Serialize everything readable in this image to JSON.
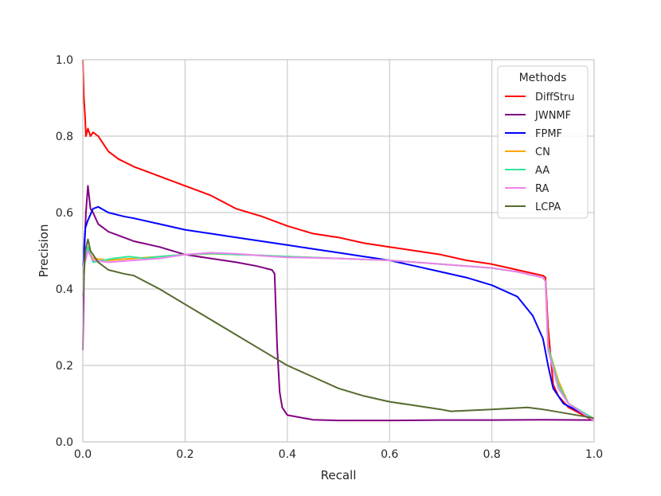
{
  "chart_data": {
    "type": "line",
    "title": "",
    "xlabel": "Recall",
    "ylabel": "Precision",
    "xlim": [
      0.0,
      1.0
    ],
    "ylim": [
      0.0,
      1.0
    ],
    "xticks": [
      "0.0",
      "0.2",
      "0.4",
      "0.6",
      "0.8",
      "1.0"
    ],
    "yticks": [
      "0.0",
      "0.2",
      "0.4",
      "0.6",
      "0.8",
      "1.0"
    ],
    "grid": true,
    "legend": {
      "title": "Methods",
      "placement": "top-right"
    },
    "series": [
      {
        "name": "DiffStru",
        "color": "#ff0000",
        "points": [
          [
            0.0,
            1.0
          ],
          [
            0.002,
            0.9
          ],
          [
            0.004,
            0.86
          ],
          [
            0.006,
            0.8
          ],
          [
            0.01,
            0.82
          ],
          [
            0.015,
            0.8
          ],
          [
            0.02,
            0.81
          ],
          [
            0.03,
            0.8
          ],
          [
            0.04,
            0.78
          ],
          [
            0.05,
            0.76
          ],
          [
            0.07,
            0.74
          ],
          [
            0.1,
            0.72
          ],
          [
            0.13,
            0.705
          ],
          [
            0.16,
            0.69
          ],
          [
            0.2,
            0.67
          ],
          [
            0.25,
            0.645
          ],
          [
            0.3,
            0.61
          ],
          [
            0.35,
            0.59
          ],
          [
            0.4,
            0.565
          ],
          [
            0.45,
            0.545
          ],
          [
            0.5,
            0.535
          ],
          [
            0.55,
            0.52
          ],
          [
            0.6,
            0.51
          ],
          [
            0.65,
            0.5
          ],
          [
            0.7,
            0.49
          ],
          [
            0.75,
            0.475
          ],
          [
            0.8,
            0.465
          ],
          [
            0.85,
            0.45
          ],
          [
            0.9,
            0.435
          ],
          [
            0.905,
            0.43
          ],
          [
            0.91,
            0.3
          ],
          [
            0.92,
            0.15
          ],
          [
            0.93,
            0.12
          ],
          [
            0.95,
            0.09
          ],
          [
            1.0,
            0.055
          ]
        ]
      },
      {
        "name": "JWNMF",
        "color": "#800080",
        "points": [
          [
            0.0,
            0.24
          ],
          [
            0.003,
            0.5
          ],
          [
            0.006,
            0.6
          ],
          [
            0.01,
            0.67
          ],
          [
            0.015,
            0.61
          ],
          [
            0.02,
            0.6
          ],
          [
            0.03,
            0.57
          ],
          [
            0.05,
            0.55
          ],
          [
            0.08,
            0.535
          ],
          [
            0.1,
            0.525
          ],
          [
            0.15,
            0.51
          ],
          [
            0.2,
            0.49
          ],
          [
            0.25,
            0.48
          ],
          [
            0.3,
            0.47
          ],
          [
            0.34,
            0.46
          ],
          [
            0.37,
            0.45
          ],
          [
            0.375,
            0.44
          ],
          [
            0.38,
            0.25
          ],
          [
            0.385,
            0.13
          ],
          [
            0.39,
            0.09
          ],
          [
            0.4,
            0.07
          ],
          [
            0.45,
            0.058
          ],
          [
            0.5,
            0.056
          ],
          [
            0.6,
            0.056
          ],
          [
            0.7,
            0.057
          ],
          [
            0.8,
            0.057
          ],
          [
            0.9,
            0.058
          ],
          [
            1.0,
            0.057
          ]
        ]
      },
      {
        "name": "FPMF",
        "color": "#0000ff",
        "points": [
          [
            0.0,
            0.46
          ],
          [
            0.005,
            0.56
          ],
          [
            0.01,
            0.58
          ],
          [
            0.02,
            0.61
          ],
          [
            0.03,
            0.615
          ],
          [
            0.05,
            0.6
          ],
          [
            0.08,
            0.59
          ],
          [
            0.1,
            0.585
          ],
          [
            0.15,
            0.57
          ],
          [
            0.2,
            0.555
          ],
          [
            0.25,
            0.545
          ],
          [
            0.3,
            0.535
          ],
          [
            0.35,
            0.525
          ],
          [
            0.4,
            0.515
          ],
          [
            0.45,
            0.505
          ],
          [
            0.5,
            0.495
          ],
          [
            0.55,
            0.485
          ],
          [
            0.6,
            0.475
          ],
          [
            0.65,
            0.46
          ],
          [
            0.7,
            0.445
          ],
          [
            0.75,
            0.43
          ],
          [
            0.8,
            0.41
          ],
          [
            0.85,
            0.38
          ],
          [
            0.88,
            0.33
          ],
          [
            0.9,
            0.27
          ],
          [
            0.91,
            0.2
          ],
          [
            0.92,
            0.14
          ],
          [
            0.94,
            0.1
          ],
          [
            1.0,
            0.06
          ]
        ]
      },
      {
        "name": "CN",
        "color": "#ffa500",
        "points": [
          [
            0.0,
            0.45
          ],
          [
            0.01,
            0.5
          ],
          [
            0.02,
            0.48
          ],
          [
            0.05,
            0.475
          ],
          [
            0.1,
            0.48
          ],
          [
            0.15,
            0.485
          ],
          [
            0.2,
            0.49
          ],
          [
            0.25,
            0.492
          ],
          [
            0.3,
            0.49
          ],
          [
            0.35,
            0.488
          ],
          [
            0.4,
            0.485
          ],
          [
            0.5,
            0.48
          ],
          [
            0.6,
            0.475
          ],
          [
            0.7,
            0.465
          ],
          [
            0.8,
            0.455
          ],
          [
            0.85,
            0.445
          ],
          [
            0.9,
            0.43
          ],
          [
            0.905,
            0.42
          ],
          [
            0.91,
            0.25
          ],
          [
            0.93,
            0.16
          ],
          [
            0.95,
            0.1
          ],
          [
            1.0,
            0.06
          ]
        ]
      },
      {
        "name": "AA",
        "color": "#2fe89a",
        "points": [
          [
            0.0,
            0.45
          ],
          [
            0.01,
            0.51
          ],
          [
            0.02,
            0.47
          ],
          [
            0.04,
            0.475
          ],
          [
            0.06,
            0.48
          ],
          [
            0.09,
            0.485
          ],
          [
            0.12,
            0.48
          ],
          [
            0.15,
            0.485
          ],
          [
            0.2,
            0.49
          ],
          [
            0.25,
            0.493
          ],
          [
            0.3,
            0.49
          ],
          [
            0.35,
            0.488
          ],
          [
            0.4,
            0.485
          ],
          [
            0.5,
            0.48
          ],
          [
            0.6,
            0.475
          ],
          [
            0.7,
            0.465
          ],
          [
            0.8,
            0.455
          ],
          [
            0.85,
            0.445
          ],
          [
            0.9,
            0.43
          ],
          [
            0.905,
            0.42
          ],
          [
            0.91,
            0.25
          ],
          [
            0.93,
            0.15
          ],
          [
            0.95,
            0.1
          ],
          [
            1.0,
            0.06
          ]
        ]
      },
      {
        "name": "RA",
        "color": "#ee82ee",
        "points": [
          [
            0.0,
            0.45
          ],
          [
            0.01,
            0.5
          ],
          [
            0.02,
            0.475
          ],
          [
            0.05,
            0.47
          ],
          [
            0.1,
            0.475
          ],
          [
            0.15,
            0.48
          ],
          [
            0.2,
            0.49
          ],
          [
            0.25,
            0.495
          ],
          [
            0.3,
            0.492
          ],
          [
            0.35,
            0.487
          ],
          [
            0.4,
            0.483
          ],
          [
            0.5,
            0.48
          ],
          [
            0.6,
            0.475
          ],
          [
            0.7,
            0.465
          ],
          [
            0.8,
            0.455
          ],
          [
            0.85,
            0.445
          ],
          [
            0.9,
            0.43
          ],
          [
            0.905,
            0.42
          ],
          [
            0.91,
            0.24
          ],
          [
            0.93,
            0.14
          ],
          [
            0.95,
            0.1
          ],
          [
            1.0,
            0.055
          ]
        ]
      },
      {
        "name": "LCPA",
        "color": "#556b2f",
        "points": [
          [
            0.0,
            0.38
          ],
          [
            0.005,
            0.5
          ],
          [
            0.01,
            0.53
          ],
          [
            0.015,
            0.5
          ],
          [
            0.02,
            0.49
          ],
          [
            0.03,
            0.47
          ],
          [
            0.05,
            0.45
          ],
          [
            0.08,
            0.44
          ],
          [
            0.1,
            0.435
          ],
          [
            0.15,
            0.4
          ],
          [
            0.2,
            0.36
          ],
          [
            0.25,
            0.32
          ],
          [
            0.3,
            0.28
          ],
          [
            0.35,
            0.24
          ],
          [
            0.4,
            0.2
          ],
          [
            0.45,
            0.17
          ],
          [
            0.5,
            0.14
          ],
          [
            0.55,
            0.12
          ],
          [
            0.6,
            0.105
          ],
          [
            0.65,
            0.095
          ],
          [
            0.7,
            0.085
          ],
          [
            0.72,
            0.08
          ],
          [
            0.8,
            0.085
          ],
          [
            0.87,
            0.09
          ],
          [
            0.9,
            0.085
          ],
          [
            1.0,
            0.062
          ]
        ]
      }
    ]
  }
}
